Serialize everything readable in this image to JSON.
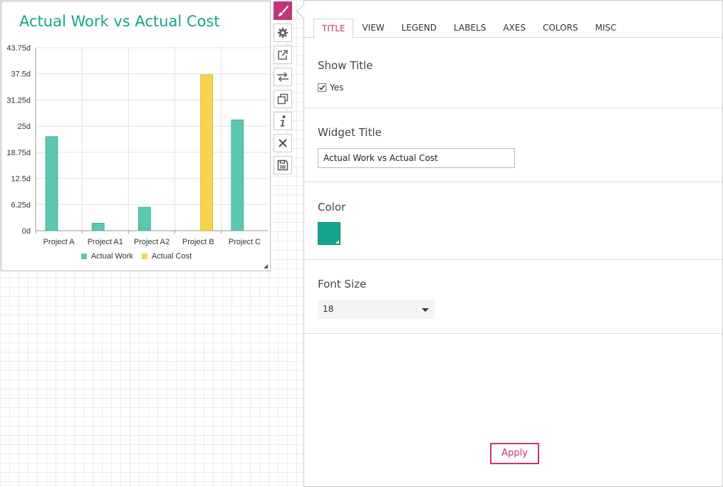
{
  "widget": {
    "title": "Actual Work vs Actual Cost",
    "title_color": "#12a58c"
  },
  "chart_data": {
    "type": "bar",
    "title": "Actual Work vs Actual Cost",
    "categories": [
      "Project A",
      "Project A1",
      "Project A2",
      "Project B",
      "Project C"
    ],
    "series": [
      {
        "name": "Actual Work",
        "color": "#5cc7b1",
        "values": [
          22.5,
          1.8,
          5.6,
          0,
          26.5
        ]
      },
      {
        "name": "Actual Cost",
        "color": "#f7d44a",
        "values": [
          0,
          0,
          0,
          37.3,
          0
        ]
      }
    ],
    "y_ticks": [
      "0d",
      "6.25d",
      "12.5d",
      "18.75d",
      "25d",
      "31.25d",
      "37.5d",
      "43.75d"
    ],
    "ylim": [
      0,
      43.75
    ],
    "grid": true,
    "legend_position": "bottom"
  },
  "toolbar": {
    "items": [
      {
        "name": "brush-icon",
        "active": true
      },
      {
        "name": "gear-icon"
      },
      {
        "name": "open-external-icon"
      },
      {
        "name": "swap-arrows-icon"
      },
      {
        "name": "duplicate-icon"
      },
      {
        "name": "info-icon"
      },
      {
        "name": "close-icon"
      },
      {
        "name": "save-icon"
      }
    ]
  },
  "panel": {
    "tabs": [
      {
        "label": "TITLE",
        "active": true
      },
      {
        "label": "VIEW"
      },
      {
        "label": "LEGEND"
      },
      {
        "label": "LABELS"
      },
      {
        "label": "AXES"
      },
      {
        "label": "COLORS"
      },
      {
        "label": "MISC"
      }
    ],
    "show_title": {
      "label": "Show Title",
      "checkbox_label": "Yes",
      "checked": true
    },
    "widget_title": {
      "label": "Widget Title",
      "value": "Actual Work vs Actual Cost"
    },
    "color": {
      "label": "Color",
      "value": "#12a58c"
    },
    "font_size": {
      "label": "Font Size",
      "value": "18"
    },
    "apply_label": "Apply",
    "accent_color": "#c2347a"
  }
}
